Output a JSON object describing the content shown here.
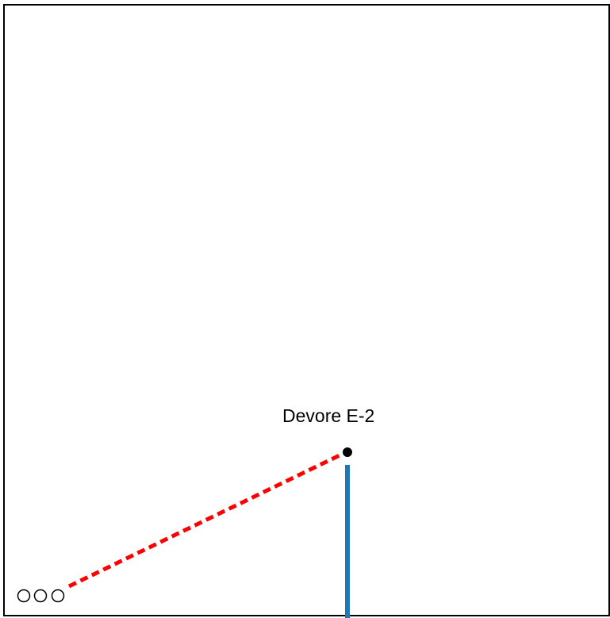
{
  "map": {
    "station": {
      "label": "Devore E-2"
    },
    "colors": {
      "frame": "#000000",
      "background": "#ffffff",
      "dashed_route": "#ff0000",
      "solid_route": "#1f77b4",
      "station_marker": "#000000",
      "endpoint_markers": "#000000"
    },
    "icons": {
      "endpoint_markers": "three-circles-icon",
      "station_marker": "station-dot-icon"
    }
  }
}
